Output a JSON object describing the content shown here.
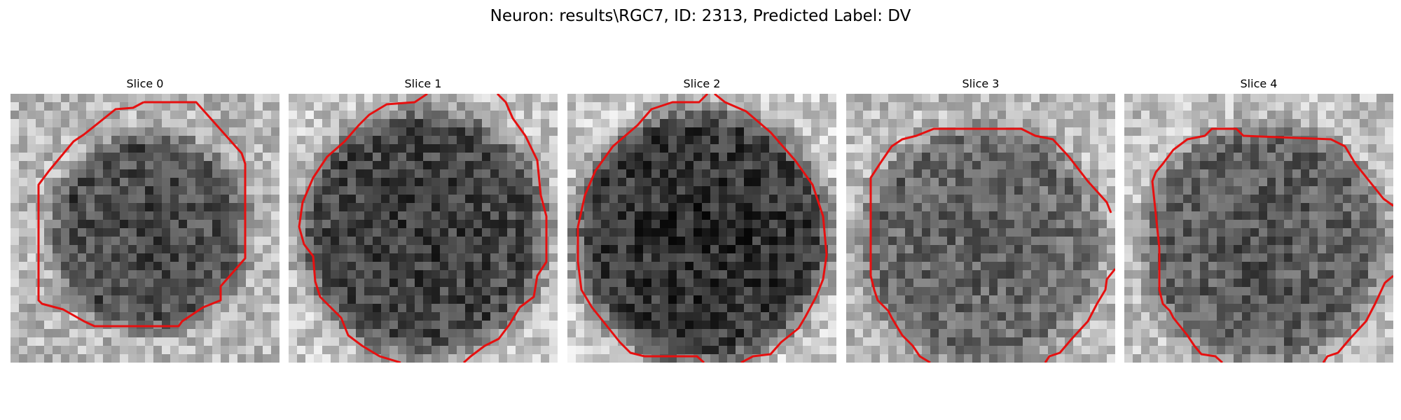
{
  "figure": {
    "title": "Neuron: results\\RGC7, ID: 2313, Predicted Label: DV"
  },
  "slices": [
    {
      "title": "Slice 0"
    },
    {
      "title": "Slice 1"
    },
    {
      "title": "Slice 2"
    },
    {
      "title": "Slice 3"
    },
    {
      "title": "Slice 4"
    }
  ],
  "colors": {
    "contour": "#e61010",
    "background": "#ffffff"
  }
}
